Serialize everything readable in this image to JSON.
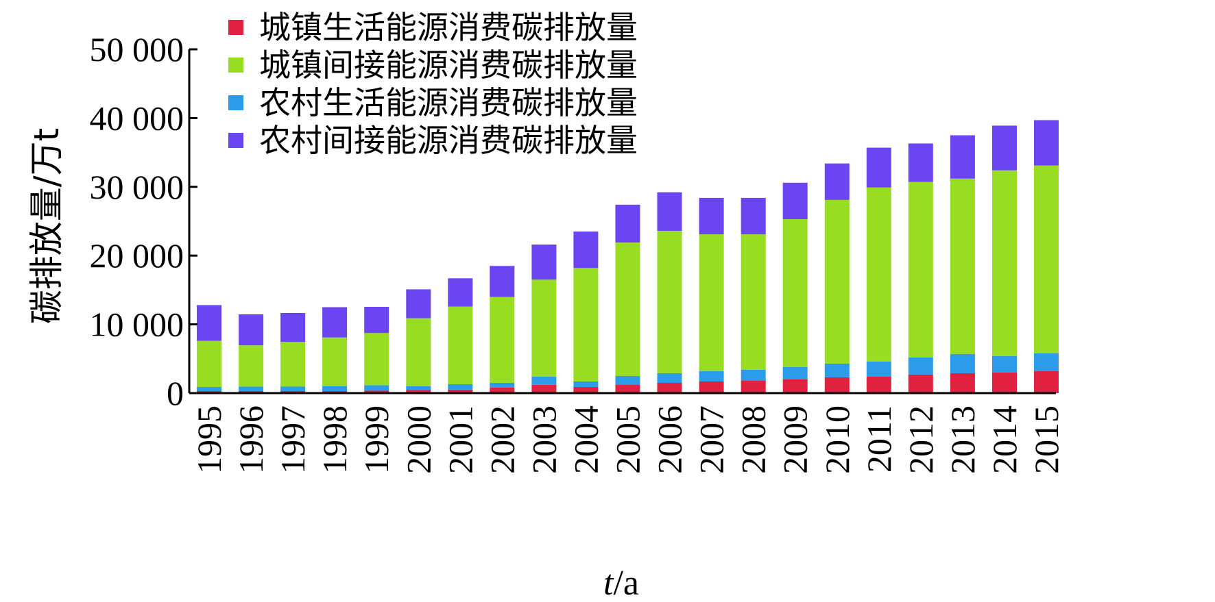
{
  "chart_data": {
    "type": "bar",
    "stacked": true,
    "categories": [
      "1995",
      "1996",
      "1997",
      "1998",
      "1999",
      "2000",
      "2001",
      "2002",
      "2003",
      "2004",
      "2005",
      "2006",
      "2007",
      "2008",
      "2009",
      "2010",
      "2011",
      "2012",
      "2013",
      "2014",
      "2015"
    ],
    "series": [
      {
        "name": "城镇生活能源消费碳排放量",
        "color": "#e0213f",
        "values": [
          300,
          300,
          300,
          300,
          350,
          400,
          500,
          800,
          1200,
          900,
          1200,
          1500,
          1700,
          1800,
          2000,
          2300,
          2400,
          2700,
          2900,
          3000,
          3200
        ]
      },
      {
        "name": "农村生活能源消费碳排放量",
        "color": "#2b9bea",
        "values": [
          600,
          650,
          650,
          700,
          800,
          600,
          800,
          700,
          1200,
          800,
          1300,
          1400,
          1500,
          1600,
          1800,
          2000,
          2200,
          2500,
          2800,
          2400,
          2600
        ]
      },
      {
        "name": "城镇间接能源消费碳排放量",
        "color": "#99dd22",
        "values": [
          6700,
          6000,
          6500,
          7100,
          7600,
          9900,
          11300,
          12500,
          14100,
          16500,
          19400,
          20700,
          19900,
          19700,
          21500,
          23800,
          25300,
          25500,
          25500,
          27000,
          27300
        ]
      },
      {
        "name": "农村间接能源消费碳排放量",
        "color": "#6b45f2",
        "values": [
          5200,
          4500,
          4200,
          4400,
          3800,
          4200,
          4100,
          4500,
          5100,
          5300,
          5500,
          5600,
          5300,
          5300,
          5300,
          5300,
          5800,
          5600,
          6300,
          6500,
          6600
        ]
      }
    ],
    "legend_order": [
      "城镇生活能源消费碳排放量",
      "城镇间接能源消费碳排放量",
      "农村生活能源消费碳排放量",
      "农村间接能源消费碳排放量"
    ],
    "yticks": [
      "0",
      "10 000",
      "20 000",
      "30 000",
      "40 000",
      "50 000"
    ],
    "ylim": [
      0,
      50000
    ],
    "ylabel": "碳排放量/万t",
    "xlabel_italic": "t",
    "xlabel_rest": "/a",
    "grid": false,
    "legend_position": "top-left"
  }
}
